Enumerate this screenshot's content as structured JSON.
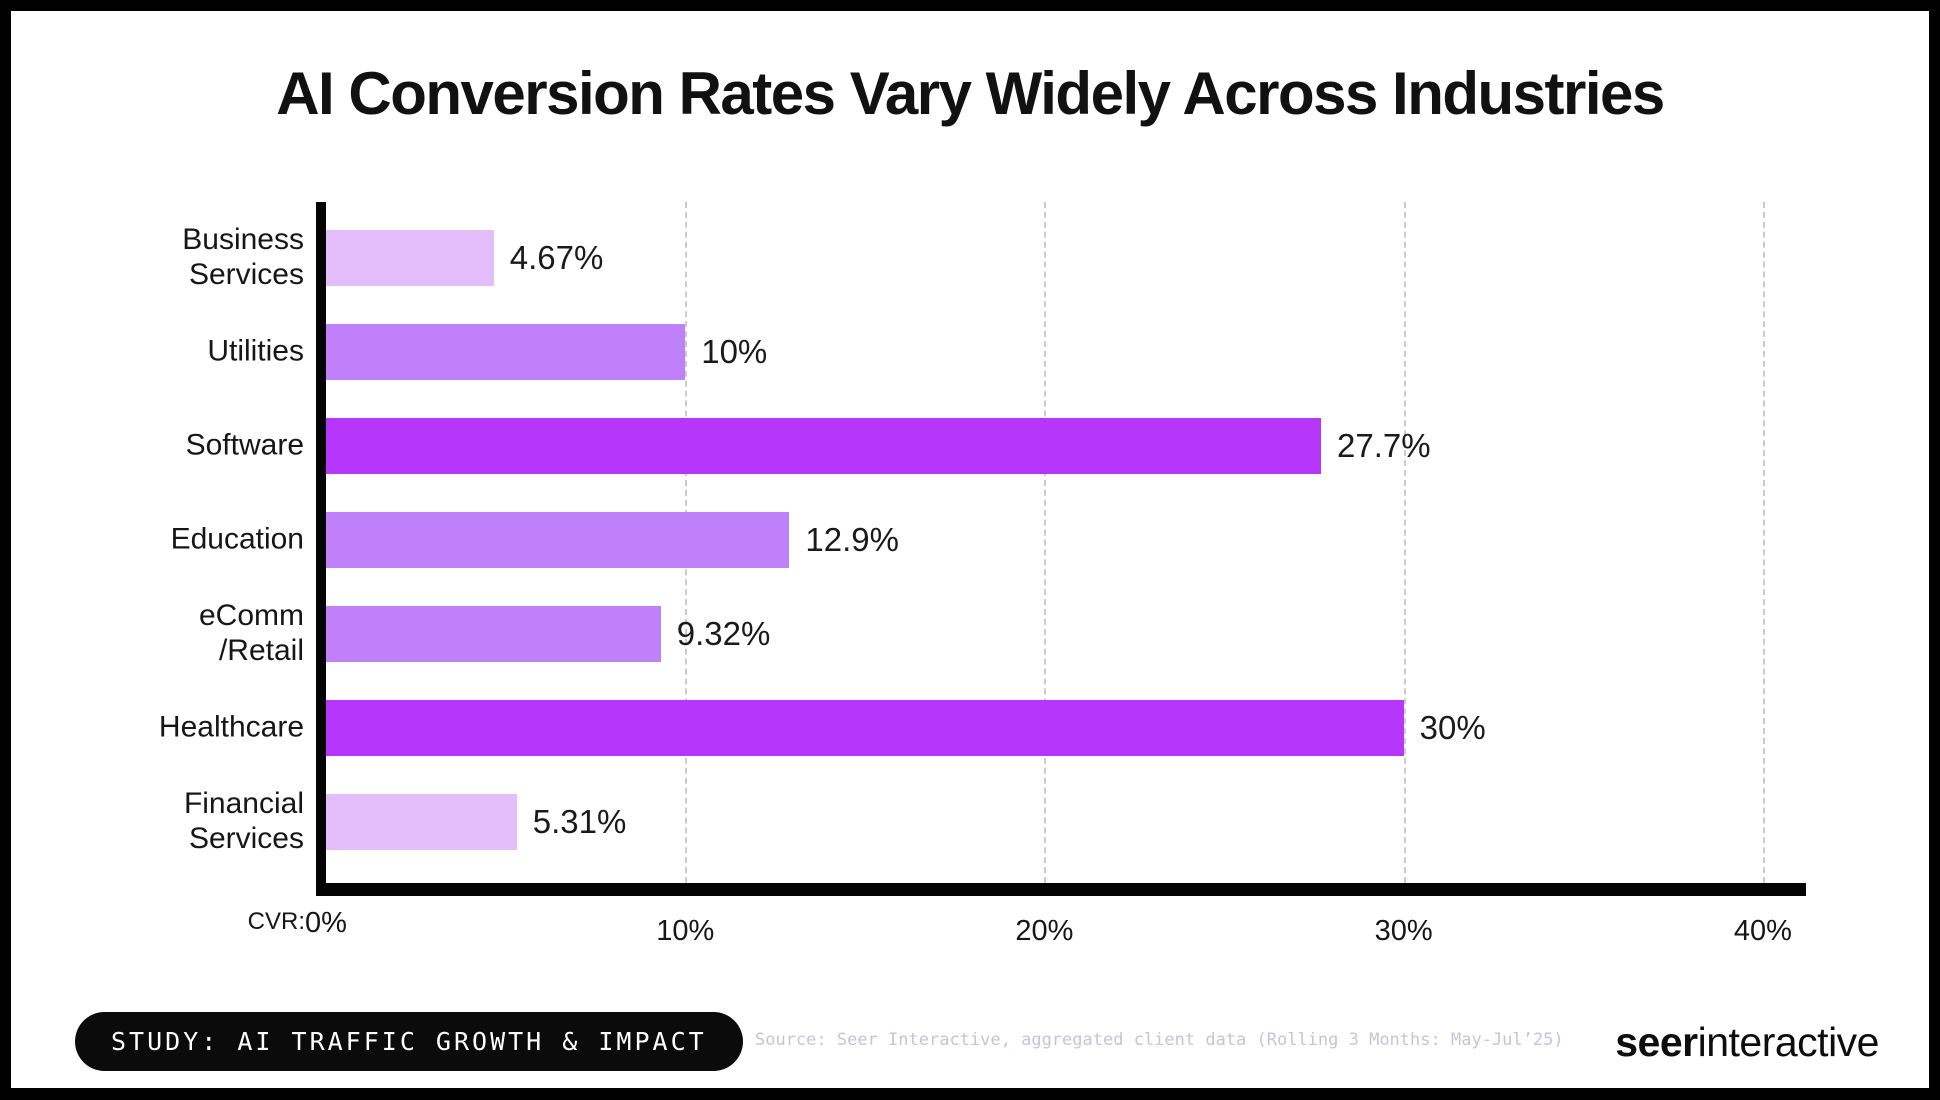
{
  "title": "AI Conversion Rates Vary Widely Across Industries",
  "chart_data": {
    "type": "bar",
    "orientation": "horizontal",
    "title": "AI Conversion Rates Vary Widely Across Industries",
    "categories": [
      "Business Services",
      "Utilities",
      "Software",
      "Education",
      "eComm /Retail",
      "Healthcare",
      "Financial Services"
    ],
    "category_lines": [
      [
        "Business",
        "Services"
      ],
      [
        "Utilities"
      ],
      [
        "Software"
      ],
      [
        "Education"
      ],
      [
        "eComm",
        "/Retail"
      ],
      [
        "Healthcare"
      ],
      [
        "Financial",
        "Services"
      ]
    ],
    "values": [
      4.67,
      10,
      27.7,
      12.9,
      9.32,
      30,
      5.31
    ],
    "value_labels": [
      "4.67%",
      "10%",
      "27.7%",
      "12.9%",
      "9.32%",
      "30%",
      "5.31%"
    ],
    "bar_colors": [
      "#e3befa",
      "#c080fa",
      "#b636fb",
      "#c080fa",
      "#c080fa",
      "#b636fb",
      "#e3befa"
    ],
    "xlabel_prefix": "CVR:",
    "x_ticks": [
      "0%",
      "10%",
      "20%",
      "30%",
      "40%"
    ],
    "x_tick_values": [
      0,
      10,
      20,
      30,
      40
    ],
    "xlim": [
      0,
      41.2
    ],
    "grid": "vertical-dashed",
    "gridline_color": "#cbcbcb",
    "axis_color": "#040404",
    "legend": "none"
  },
  "footer": {
    "badge": "STUDY: AI TRAFFIC GROWTH & IMPACT",
    "source": "Source: Seer Interactive, aggregated client data (Rolling 3 Months: May-Jul’25)",
    "logo_bold": "seer",
    "logo_regular": "interactive"
  },
  "colors": {
    "background_border": "#000000",
    "card": "#ffffff",
    "bar_light": "#e3befa",
    "bar_medium": "#c080fa",
    "bar_vivid": "#b636fb",
    "badge_bg": "#0b0b0b",
    "badge_text": "#ffffff",
    "source_text": "#c5c4d8"
  }
}
